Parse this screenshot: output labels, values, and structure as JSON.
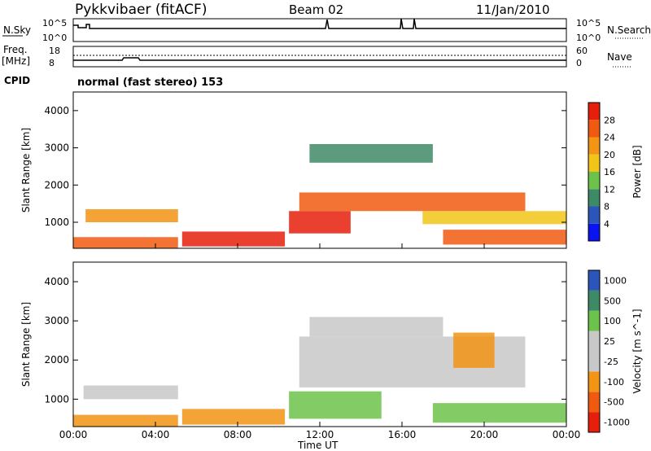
{
  "header": {
    "station": "Pykkvibaer (fitACF)",
    "beam": "Beam 02",
    "date": "11/Jan/2010"
  },
  "status_panels": {
    "nsky_label": "N.Sky",
    "nsky_ticks": [
      "10^5",
      "10^0"
    ],
    "nsearch_label": "N.Search",
    "nsearch_ticks": [
      "10^5",
      "10^0"
    ],
    "freq_label": "Freq.",
    "freq_unit": "[MHz]",
    "freq_ticks": [
      "18",
      "8"
    ],
    "nave_label": "Nave",
    "nave_ticks": [
      "60",
      "0"
    ],
    "cpid_label": "CPID",
    "cpid_text": "normal (fast stereo) 153"
  },
  "colors": {
    "power_scale": [
      "#0a14f0",
      "#2b55b8",
      "#3f8a66",
      "#6cc24a",
      "#f2c418",
      "#f29414",
      "#f05a10",
      "#e61e0c"
    ],
    "velocity_scale": [
      "#e61e0c",
      "#f05a10",
      "#f29414",
      "#c8c8c8",
      "#c8c8c8",
      "#6cc24a",
      "#3f8a66",
      "#2b55b8"
    ],
    "ground_scatter": "#c8c8c8"
  },
  "chart_data": [
    {
      "type": "heatmap",
      "name": "power",
      "ylabel": "Slant Range [km]",
      "yticks": [
        "1000",
        "2000",
        "3000",
        "4000"
      ],
      "ylim": [
        300,
        4500
      ],
      "colorbar_label": "Power [dB]",
      "colorbar_ticks": [
        "4",
        "8",
        "12",
        "16",
        "20",
        "24",
        "28"
      ],
      "bands": [
        {
          "t0": 0.0,
          "t1": 5.1,
          "r0": 300,
          "r1": 600,
          "level": 6
        },
        {
          "t0": 0.6,
          "t1": 5.1,
          "r0": 1000,
          "r1": 1350,
          "level": 5
        },
        {
          "t0": 5.3,
          "t1": 10.3,
          "r0": 350,
          "r1": 750,
          "level": 7
        },
        {
          "t0": 10.5,
          "t1": 13.5,
          "r0": 700,
          "r1": 1300,
          "level": 7
        },
        {
          "t0": 11.0,
          "t1": 22.0,
          "r0": 1300,
          "r1": 1800,
          "level": 6
        },
        {
          "t0": 11.5,
          "t1": 17.5,
          "r0": 2600,
          "r1": 3100,
          "level": 2
        },
        {
          "t0": 18.0,
          "t1": 24.0,
          "r0": 400,
          "r1": 800,
          "level": 6
        },
        {
          "t0": 17.0,
          "t1": 24.0,
          "r0": 950,
          "r1": 1300,
          "level": 4
        }
      ]
    },
    {
      "type": "heatmap",
      "name": "velocity",
      "ylabel": "Slant Range [km]",
      "yticks": [
        "1000",
        "2000",
        "3000",
        "4000"
      ],
      "ylim": [
        300,
        4500
      ],
      "xlabel": "Time UT",
      "xticks": [
        "00:00",
        "04:00",
        "08:00",
        "12:00",
        "16:00",
        "20:00",
        "00:00"
      ],
      "xlim": [
        0,
        24
      ],
      "colorbar_label": "Velocity [m s^-1]",
      "colorbar_ticks": [
        "1000",
        "500",
        "100",
        "25",
        "-25",
        "-100",
        "-500",
        "-1000"
      ],
      "bands": [
        {
          "t0": 0.5,
          "t1": 5.1,
          "r0": 1000,
          "r1": 1350,
          "level": 3
        },
        {
          "t0": 0.0,
          "t1": 5.1,
          "r0": 300,
          "r1": 600,
          "level": 2
        },
        {
          "t0": 5.3,
          "t1": 10.3,
          "r0": 350,
          "r1": 750,
          "level": 2
        },
        {
          "t0": 10.5,
          "t1": 15.0,
          "r0": 500,
          "r1": 1200,
          "level": 5
        },
        {
          "t0": 11.0,
          "t1": 22.0,
          "r0": 1300,
          "r1": 2600,
          "level": 3
        },
        {
          "t0": 11.5,
          "t1": 18.0,
          "r0": 2600,
          "r1": 3100,
          "level": 3
        },
        {
          "t0": 18.5,
          "t1": 20.5,
          "r0": 1800,
          "r1": 2700,
          "level": 2
        },
        {
          "t0": 17.5,
          "t1": 24.0,
          "r0": 400,
          "r1": 900,
          "level": 5
        }
      ]
    }
  ]
}
